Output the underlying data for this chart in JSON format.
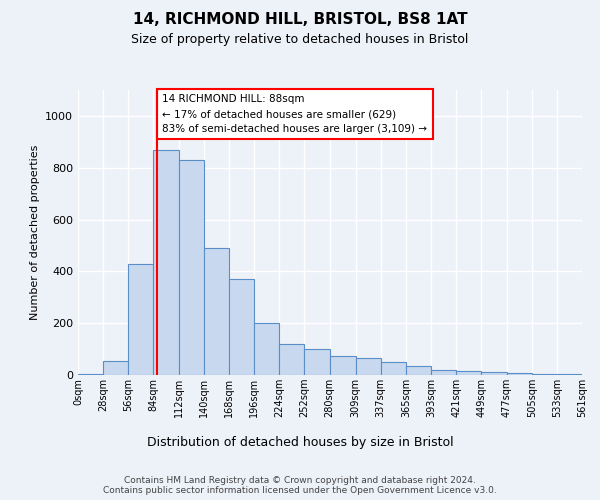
{
  "title": "14, RICHMOND HILL, BRISTOL, BS8 1AT",
  "subtitle": "Size of property relative to detached houses in Bristol",
  "xlabel": "Distribution of detached houses by size in Bristol",
  "ylabel": "Number of detached properties",
  "bar_color": "#c8d9ef",
  "bar_edge_color": "#5a8ec8",
  "vline_x": 88,
  "vline_color": "red",
  "annotation_text": "14 RICHMOND HILL: 88sqm\n← 17% of detached houses are smaller (629)\n83% of semi-detached houses are larger (3,109) →",
  "footer_line1": "Contains HM Land Registry data © Crown copyright and database right 2024.",
  "footer_line2": "Contains public sector information licensed under the Open Government Licence v3.0.",
  "bin_edges": [
    0,
    28,
    56,
    84,
    112,
    140,
    168,
    196,
    224,
    252,
    280,
    309,
    337,
    365,
    393,
    421,
    449,
    477,
    505,
    533,
    561
  ],
  "bin_labels": [
    "0sqm",
    "28sqm",
    "56sqm",
    "84sqm",
    "112sqm",
    "140sqm",
    "168sqm",
    "196sqm",
    "224sqm",
    "252sqm",
    "280sqm",
    "309sqm",
    "337sqm",
    "365sqm",
    "393sqm",
    "421sqm",
    "449sqm",
    "477sqm",
    "505sqm",
    "533sqm",
    "561sqm"
  ],
  "bar_heights": [
    5,
    55,
    430,
    870,
    830,
    490,
    370,
    200,
    120,
    100,
    75,
    65,
    50,
    35,
    20,
    15,
    10,
    8,
    5,
    5
  ],
  "ylim": [
    0,
    1100
  ],
  "yticks": [
    0,
    200,
    400,
    600,
    800,
    1000
  ],
  "background_color": "#edf1f8"
}
